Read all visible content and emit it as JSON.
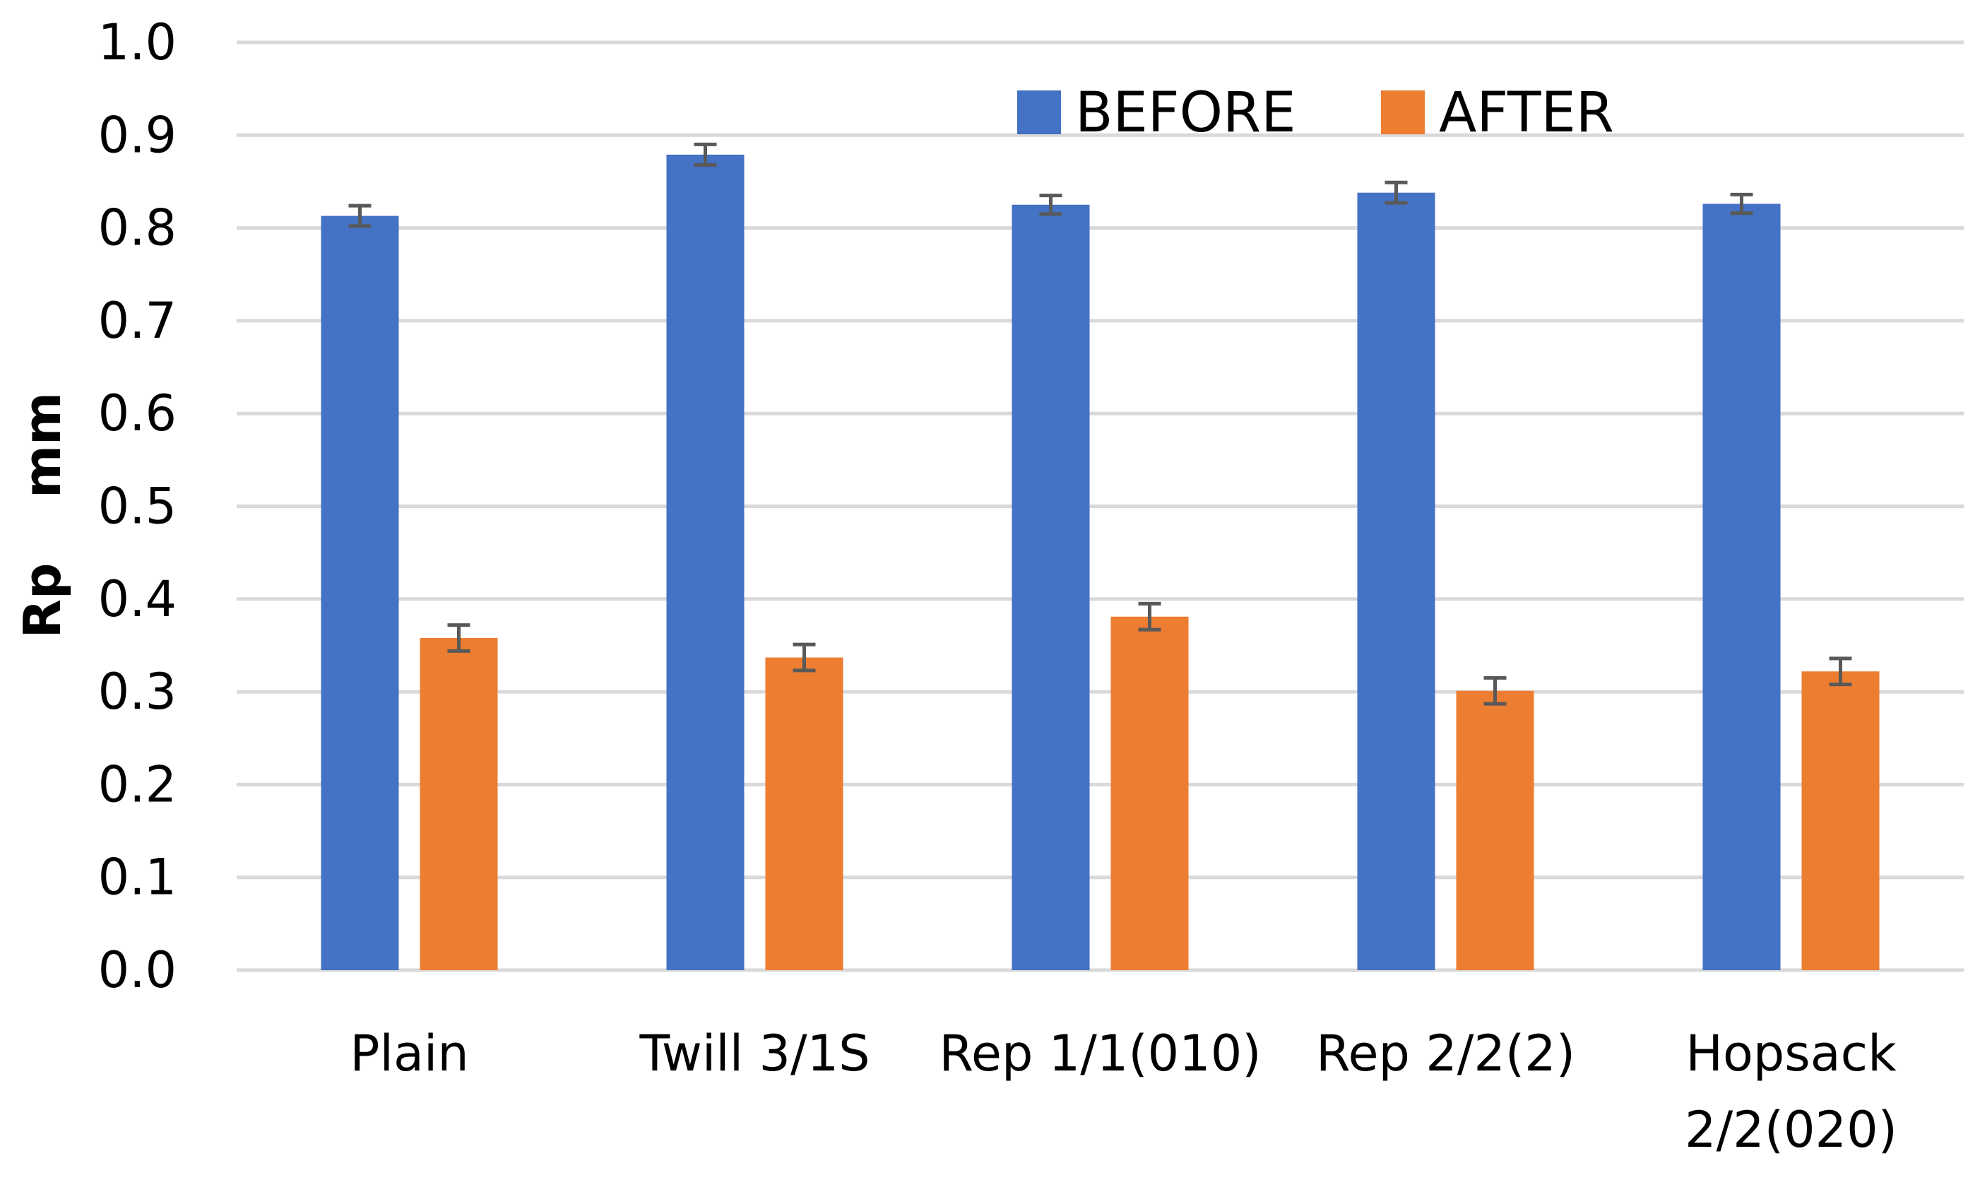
{
  "chart_data": {
    "type": "bar",
    "title": "",
    "xlabel": "",
    "ylabel_parts": [
      "Rp",
      "mm"
    ],
    "ylim": [
      0,
      1.0
    ],
    "ytick_step": 0.1,
    "ytick_labels": [
      "0.0",
      "0.1",
      "0.2",
      "0.3",
      "0.4",
      "0.5",
      "0.6",
      "0.7",
      "0.8",
      "0.9",
      "1.0"
    ],
    "grid": true,
    "legend_position": "top-right",
    "categories": [
      [
        "Plain"
      ],
      [
        "Twill 3/1S"
      ],
      [
        "Rep 1/1(010)"
      ],
      [
        "Rep 2/2(2)"
      ],
      [
        "Hopsack",
        "2/2(020)"
      ]
    ],
    "series": [
      {
        "name": "BEFORE",
        "color": "#4472C4",
        "values": [
          0.813,
          0.879,
          0.825,
          0.838,
          0.826
        ],
        "error": [
          0.011,
          0.011,
          0.01,
          0.011,
          0.01
        ]
      },
      {
        "name": "AFTER",
        "color": "#ED7D31",
        "values": [
          0.358,
          0.337,
          0.381,
          0.301,
          0.322
        ],
        "error": [
          0.014,
          0.014,
          0.014,
          0.014,
          0.014
        ]
      }
    ],
    "colors": {
      "grid": "#D9D9D9",
      "error_bar": "#595959",
      "text": "#000000"
    }
  }
}
